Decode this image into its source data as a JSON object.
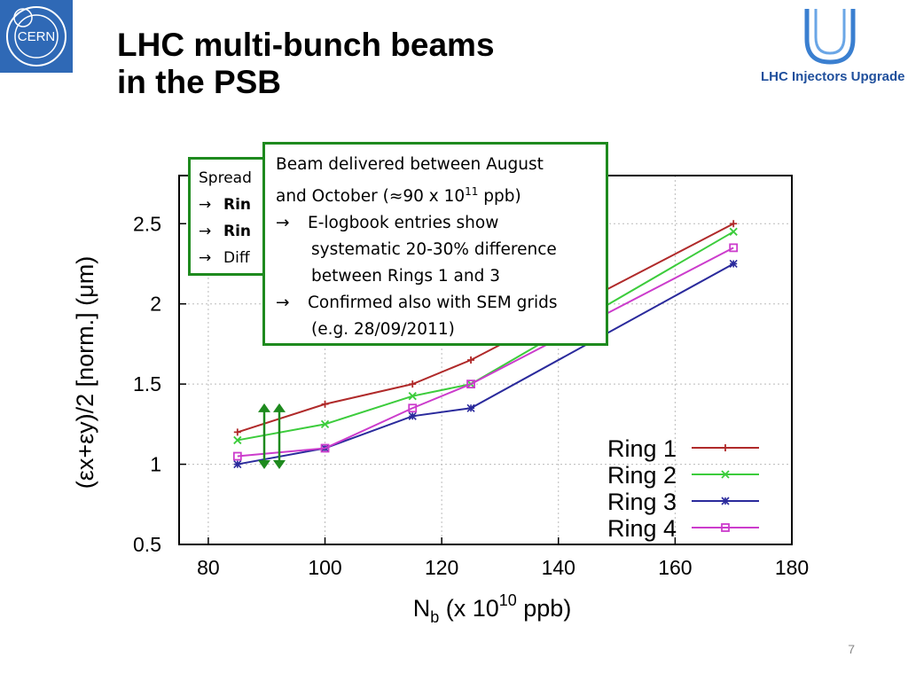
{
  "slide": {
    "title_line1": "LHC multi-bunch beams",
    "title_line2": "in the PSB",
    "cern_logo_text": "CERN",
    "liu_logo_text": "LHC Injectors Upgrade",
    "page_number": "7"
  },
  "box_spread": {
    "line1": "Spread",
    "line2": "Rin",
    "line3": "Rin",
    "line4": "Diff",
    "arrow": "→"
  },
  "box_delivery": {
    "line1": "Beam delivered between August",
    "line2_pre": "and October (≈90 x 10",
    "line2_sup": "11",
    "line2_post": " ppb)",
    "bullet1_a": "E-logbook entries show",
    "bullet1_b": "systematic 20-30% difference",
    "bullet1_c": "between Rings 1 and 3",
    "bullet2_a": "Confirmed also with SEM grids",
    "bullet2_b": "(e.g. 28/09/2011)",
    "arrow": "→"
  },
  "chart_data": {
    "type": "line",
    "xlabel": "N",
    "xlabel_sub": "b",
    "xlabel_rest1": " (x 10",
    "xlabel_sup": "10",
    "xlabel_rest2": " ppb)",
    "ylabel": "(εx+εy)/2  [norm.] (μm)",
    "xlim": [
      75,
      180
    ],
    "ylim": [
      0.5,
      2.8
    ],
    "xticks": [
      "80",
      "100",
      "120",
      "140",
      "160",
      "180"
    ],
    "yticks": [
      "0.5",
      "1",
      "1.5",
      "2",
      "2.5"
    ],
    "legend_position": "bottom-right",
    "grid": true,
    "series": [
      {
        "name": "Ring 1",
        "color": "#b02a2a",
        "marker": "plus",
        "x": [
          85,
          100,
          115,
          125,
          170
        ],
        "y": [
          1.2,
          1.375,
          1.5,
          1.65,
          2.5
        ]
      },
      {
        "name": "Ring 2",
        "color": "#3ccc3c",
        "marker": "cross",
        "x": [
          85,
          100,
          115,
          125,
          170
        ],
        "y": [
          1.15,
          1.25,
          1.425,
          1.5,
          2.45
        ]
      },
      {
        "name": "Ring 3",
        "color": "#2a2a9c",
        "marker": "star",
        "x": [
          85,
          100,
          115,
          125,
          170
        ],
        "y": [
          1.0,
          1.1,
          1.3,
          1.35,
          2.25
        ]
      },
      {
        "name": "Ring 4",
        "color": "#cc3ccc",
        "marker": "square",
        "x": [
          85,
          100,
          115,
          125,
          170
        ],
        "y": [
          1.05,
          1.1,
          1.35,
          1.5,
          2.35
        ]
      }
    ],
    "annotation_arrow_color": "#1e8a1e"
  }
}
